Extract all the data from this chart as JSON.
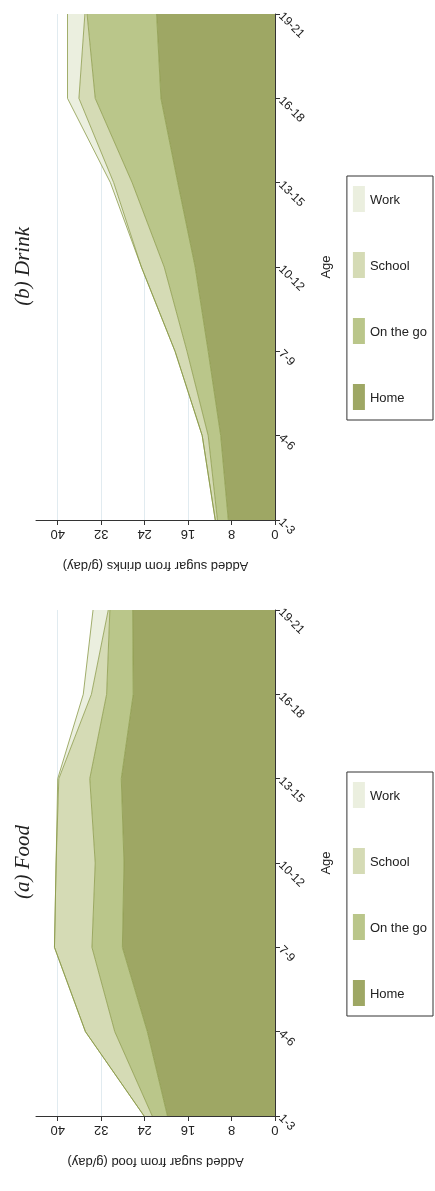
{
  "chart_data": [
    {
      "type": "area",
      "stacked": true,
      "orientation": "horizontal",
      "title": "(a) Food",
      "xlabel": "Added sugar from food (g/day)",
      "ylabel": "Age",
      "categories": [
        "19-21",
        "16-18",
        "13-15",
        "10-12",
        "7-9",
        "4-6",
        "1-3"
      ],
      "series": [
        {
          "name": "Home",
          "color": "#9ea764",
          "values": [
            26.2,
            26.1,
            28.3,
            27.8,
            28.1,
            23.5,
            19.8
          ]
        },
        {
          "name": "On the go",
          "color": "#bac68a",
          "values": [
            4.2,
            4.9,
            5.8,
            5.3,
            5.6,
            6.0,
            2.8
          ]
        },
        {
          "name": "School",
          "color": "#d5dbb5",
          "values": [
            0.3,
            2.8,
            5.7,
            7.2,
            6.9,
            5.4,
            1.5
          ]
        },
        {
          "name": "Work",
          "color": "#ebefdf",
          "values": [
            2.8,
            1.5,
            0.2,
            0,
            0,
            0,
            0
          ]
        }
      ],
      "xlim": [
        44,
        0
      ],
      "xticks": [
        40,
        32,
        24,
        16,
        8,
        0
      ],
      "grid": "x",
      "legend": "right",
      "marker": "none"
    },
    {
      "type": "area",
      "stacked": true,
      "orientation": "horizontal",
      "title": "(b) Drink",
      "xlabel": "Added sugar from drinks (g/day)",
      "ylabel": "Age",
      "categories": [
        "19-21",
        "16-18",
        "13-15",
        "10-12",
        "7-9",
        "4-6",
        "1-3"
      ],
      "series": [
        {
          "name": "Home",
          "color": "#9ea764",
          "values": [
            21.8,
            21.0,
            17.9,
            14.7,
            12.3,
            10.0,
            8.6
          ]
        },
        {
          "name": "On the go",
          "color": "#bac68a",
          "values": [
            12.8,
            12.1,
            8.4,
            5.7,
            3.9,
            2.3,
            2.0
          ]
        },
        {
          "name": "School",
          "color": "#d5dbb5",
          "values": [
            0.4,
            3.0,
            3.4,
            4.2,
            2.2,
            1.1,
            0.4
          ]
        },
        {
          "name": "Work",
          "color": "#ebefdf",
          "values": [
            3.2,
            2.1,
            0.6,
            0,
            0,
            0,
            0
          ]
        }
      ],
      "xlim": [
        44,
        0
      ],
      "xticks": [
        40,
        32,
        24,
        16,
        8,
        0
      ],
      "grid": "x",
      "legend": "right",
      "marker": "none"
    }
  ]
}
